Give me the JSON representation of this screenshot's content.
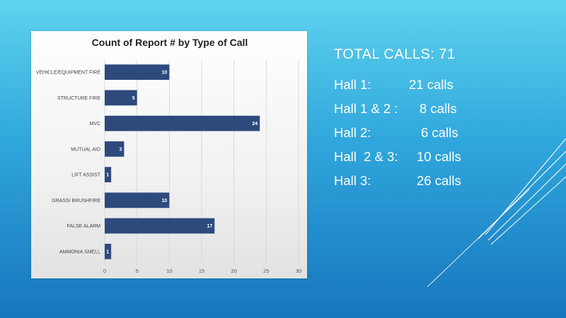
{
  "summary": {
    "total": "TOTAL CALLS: 71",
    "halls": [
      {
        "name": "Hall 1:",
        "count": "21 calls"
      },
      {
        "name": "Hall 1 & 2 :",
        "count": "8 calls"
      },
      {
        "name": "Hall 2:",
        "count": "6 calls"
      },
      {
        "name": "Hall  2 & 3:",
        "count": "10 calls"
      },
      {
        "name": "Hall 3:",
        "count": "26 calls"
      }
    ]
  },
  "colors": {
    "bar": "#2e4a7d",
    "background_top": "#5fd3ee",
    "background_bottom": "#1776bd",
    "text": "#ffffff"
  },
  "chart_data": {
    "type": "bar",
    "orientation": "horizontal",
    "title": "Count of Report # by Type of Call",
    "categories": [
      "VEHICLE/EQUIPMENT FIRE",
      "STRUCTURE FIRE",
      "MVC",
      "MUTUAL AID",
      "LIFT ASSIST",
      "GRASS/ BRUSHFIRE",
      "FALSE ALARM",
      "AMMONIA SMELL"
    ],
    "values": [
      10,
      5,
      24,
      3,
      1,
      10,
      17,
      1
    ],
    "xlabel": "",
    "ylabel": "",
    "xlim": [
      0,
      30
    ],
    "xticks": [
      0,
      5,
      10,
      15,
      20,
      25,
      30
    ],
    "grid": "vertical",
    "legend": "none",
    "data_labels": true
  }
}
